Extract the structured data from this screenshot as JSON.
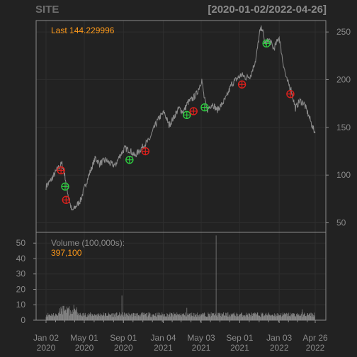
{
  "header": {
    "symbol": "SITE",
    "range": "[2020-01-02/2022-04-26]"
  },
  "colors": {
    "background": "#222222",
    "price_line": "#8c8c8c",
    "buy": "#2ecc40",
    "sell": "#e0201c",
    "label_orange": "#ff9a1a",
    "axis_text": "#8a8a8a",
    "grid": "#2e2e2e",
    "frame": "#8a8a8a"
  },
  "chart_data": [
    {
      "type": "line",
      "panel": "price",
      "annotation_label": "Last",
      "last_value": "144.229996",
      "ylim": [
        40,
        262
      ],
      "y_ticks": [
        50,
        100,
        150,
        200,
        250
      ],
      "x_ticks": [
        {
          "date": "2020-01-02",
          "label": [
            "Jan 02",
            "2020"
          ]
        },
        {
          "date": "2020-05-01",
          "label": [
            "May 01",
            "2020"
          ]
        },
        {
          "date": "2020-09-01",
          "label": [
            "Sep 01",
            "2020"
          ]
        },
        {
          "date": "2021-01-04",
          "label": [
            "Jan 04",
            "2021"
          ]
        },
        {
          "date": "2021-05-03",
          "label": [
            "May 03",
            "2021"
          ]
        },
        {
          "date": "2021-09-01",
          "label": [
            "Sep 01",
            "2021"
          ]
        },
        {
          "date": "2022-01-03",
          "label": [
            "Jan 03",
            "2022"
          ]
        },
        {
          "date": "2022-04-26",
          "label": [
            "Apr 26",
            "2022"
          ]
        }
      ],
      "xlim": [
        "2020-01-02",
        "2022-04-26"
      ],
      "grid": true,
      "series": [
        {
          "x": [
            "2020-01-02",
            "2020-01-20",
            "2020-02-10",
            "2020-02-21",
            "2020-03-02",
            "2020-03-12",
            "2020-03-23",
            "2020-04-02",
            "2020-04-20",
            "2020-05-05",
            "2020-05-20",
            "2020-06-05",
            "2020-06-18",
            "2020-07-06",
            "2020-07-22",
            "2020-08-06",
            "2020-08-20",
            "2020-09-05",
            "2020-09-22",
            "2020-10-06",
            "2020-10-22",
            "2020-11-06",
            "2020-11-20",
            "2020-12-07",
            "2020-12-22",
            "2021-01-07",
            "2021-01-22",
            "2021-02-05",
            "2021-02-22",
            "2021-03-08",
            "2021-03-22",
            "2021-04-06",
            "2021-04-20",
            "2021-05-05",
            "2021-05-12",
            "2021-05-21",
            "2021-06-07",
            "2021-06-22",
            "2021-07-07",
            "2021-07-22",
            "2021-08-06",
            "2021-08-20",
            "2021-09-07",
            "2021-09-22",
            "2021-10-06",
            "2021-10-22",
            "2021-11-03",
            "2021-11-10",
            "2021-11-19",
            "2021-12-03",
            "2021-12-17",
            "2022-01-03",
            "2022-01-14",
            "2022-01-26",
            "2022-02-09",
            "2022-02-23",
            "2022-03-08",
            "2022-03-22",
            "2022-04-06",
            "2022-04-18",
            "2022-04-26"
          ],
          "values": [
            88,
            96,
            108,
            112,
            98,
            78,
            62,
            66,
            74,
            90,
            104,
            118,
            112,
            116,
            112,
            110,
            120,
            128,
            126,
            120,
            126,
            132,
            136,
            150,
            160,
            166,
            152,
            160,
            170,
            166,
            176,
            180,
            186,
            200,
            182,
            168,
            175,
            168,
            174,
            182,
            195,
            200,
            205,
            202,
            205,
            222,
            250,
            255,
            238,
            242,
            232,
            245,
            220,
            200,
            190,
            170,
            178,
            175,
            162,
            150,
            144
          ]
        }
      ],
      "markers": [
        {
          "date": "2020-02-18",
          "value": 105,
          "kind": "sell"
        },
        {
          "date": "2020-03-02",
          "value": 88,
          "kind": "buy"
        },
        {
          "date": "2020-03-05",
          "value": 74,
          "kind": "sell"
        },
        {
          "date": "2020-09-20",
          "value": 116,
          "kind": "buy"
        },
        {
          "date": "2020-11-09",
          "value": 125,
          "kind": "sell"
        },
        {
          "date": "2021-03-19",
          "value": 163,
          "kind": "buy"
        },
        {
          "date": "2021-04-09",
          "value": 167,
          "kind": "sell"
        },
        {
          "date": "2021-05-14",
          "value": 171,
          "kind": "buy"
        },
        {
          "date": "2021-09-08",
          "value": 195,
          "kind": "sell"
        },
        {
          "date": "2021-11-24",
          "value": 238,
          "kind": "buy"
        },
        {
          "date": "2022-02-07",
          "value": 185,
          "kind": "sell"
        }
      ]
    },
    {
      "type": "bar",
      "panel": "volume",
      "label": "Volume (100,000s):",
      "last_value": "397,100",
      "ylim": [
        0,
        57
      ],
      "y_ticks": [
        0,
        10,
        20,
        30,
        40,
        50
      ],
      "baseline": 3,
      "spikes": [
        {
          "date": "2020-03-16",
          "value": 9
        },
        {
          "date": "2020-04-06",
          "value": 7
        },
        {
          "date": "2020-08-28",
          "value": 16
        },
        {
          "date": "2021-06-18",
          "value": 55
        },
        {
          "date": "2021-03-19",
          "value": 8
        },
        {
          "date": "2022-03-18",
          "value": 7
        }
      ]
    }
  ]
}
